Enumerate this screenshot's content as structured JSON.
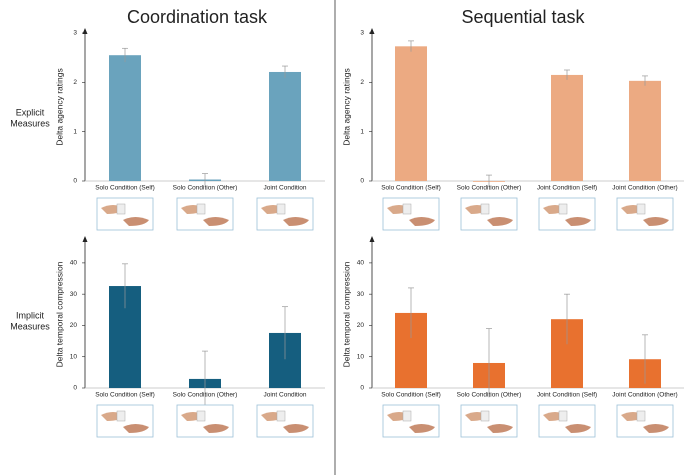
{
  "columns": [
    "Coordination task",
    "Sequential task"
  ],
  "rows": [
    "Explicit\nMeasures",
    "Implicit\nMeasures"
  ],
  "chart_data": [
    {
      "type": "bar",
      "ylabel": "Delta agency ratings",
      "color": "#6aa3bd",
      "categories": [
        "Solo Condition (Self)",
        "Solo Condition (Other)",
        "Joint Condition"
      ],
      "values": [
        2.55,
        0.03,
        2.21
      ],
      "errors": [
        0.14,
        0.12,
        0.12
      ],
      "ylim": [
        0,
        3
      ],
      "yticks": [
        0,
        1,
        2,
        3
      ]
    },
    {
      "type": "bar",
      "ylabel": "Delta agency ratings",
      "color": "#ecaa82",
      "categories": [
        "Solo Condition (Self)",
        "Solo Condition (Other)",
        "Joint Condition (Self)",
        "Joint Condition (Other)"
      ],
      "values": [
        2.73,
        0,
        2.15,
        2.03
      ],
      "errors": [
        0.11,
        0.12,
        0.1,
        0.1
      ],
      "ylim": [
        0,
        3
      ],
      "yticks": [
        0,
        1,
        2,
        3
      ]
    },
    {
      "type": "bar",
      "ylabel": "Delta temporal compression",
      "color": "#155e7f",
      "categories": [
        "Solo Condition (Self)",
        "Solo Condition (Other)",
        "Joint Condition"
      ],
      "values": [
        32.6,
        2.9,
        17.6
      ],
      "errors": [
        7.1,
        8.9,
        8.4
      ],
      "ylim": [
        0,
        47
      ],
      "yticks": [
        0,
        10,
        20,
        30,
        40
      ]
    },
    {
      "type": "bar",
      "ylabel": "Delta temporal compression",
      "color": "#e8712f",
      "categories": [
        "Solo Condition (Self)",
        "Solo Condition (Other)",
        "Joint Condition (Self)",
        "Joint Condition (Other)"
      ],
      "values": [
        24,
        8,
        22,
        9.2
      ],
      "errors": [
        8,
        11,
        8,
        7.8
      ],
      "ylim": [
        0,
        47
      ],
      "yticks": [
        0,
        10,
        20,
        30,
        40
      ]
    }
  ]
}
